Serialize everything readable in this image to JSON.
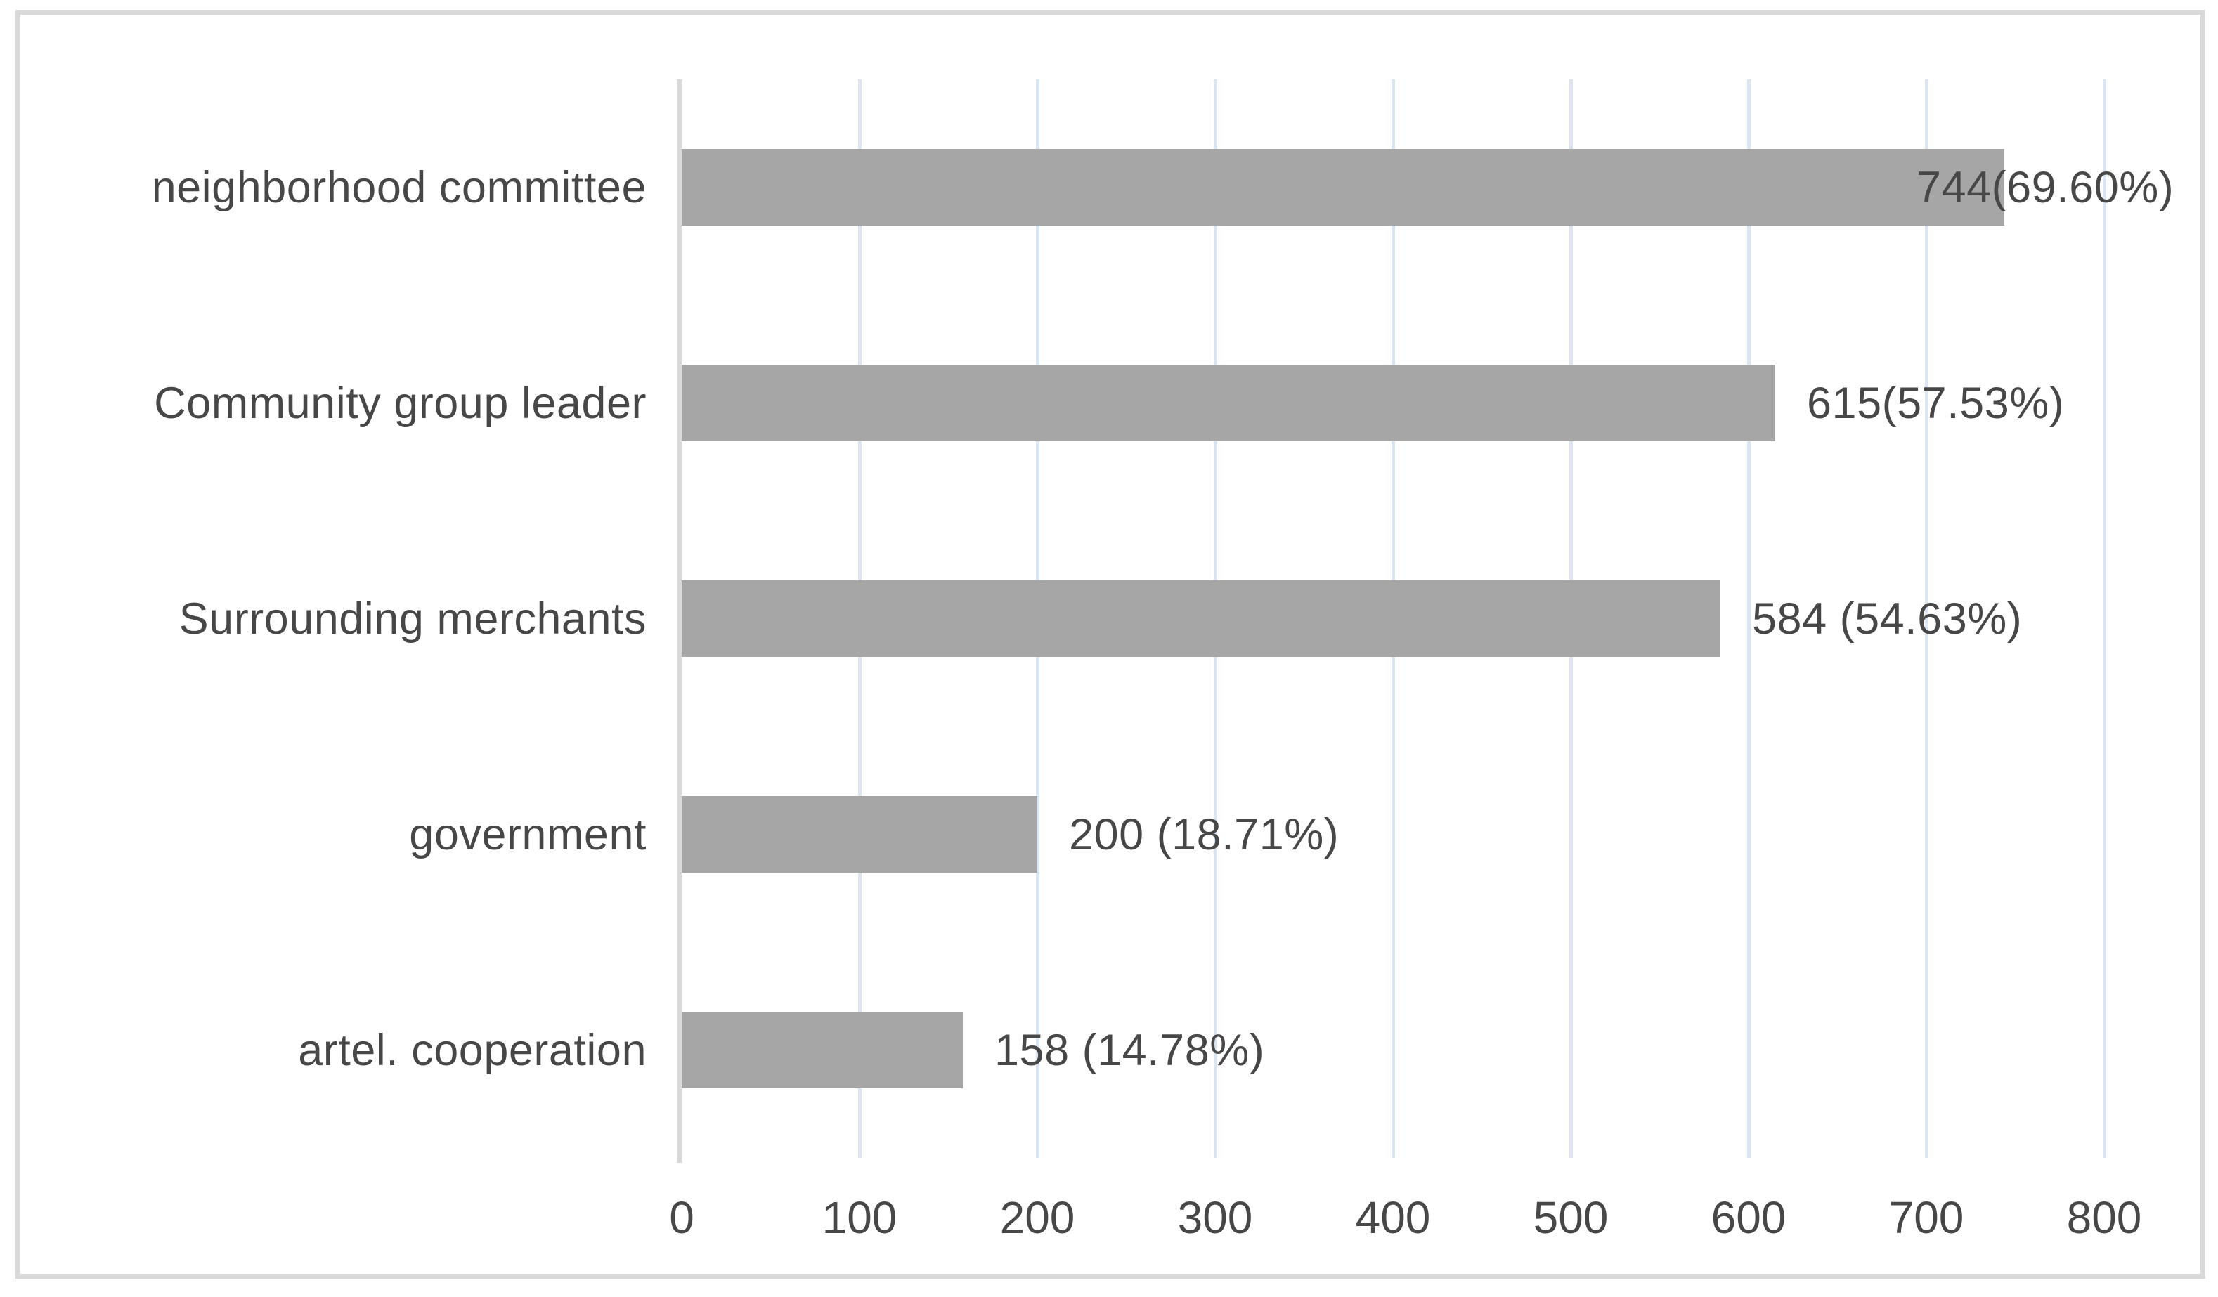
{
  "chart_data": {
    "type": "bar",
    "orientation": "horizontal",
    "title": "",
    "xlabel": "",
    "ylabel": "",
    "categories": [
      "neighborhood committee",
      "Community group leader",
      "Surrounding merchants",
      "government",
      "artel. cooperation"
    ],
    "values": [
      744,
      615,
      584,
      200,
      158
    ],
    "percentages": [
      69.6,
      57.53,
      54.63,
      18.71,
      14.78
    ],
    "value_labels": [
      "744(69.60%)",
      "615(57.53%)",
      "584 (54.63%)",
      "200 (18.71%)",
      "158 (14.78%)"
    ],
    "xlim": [
      0,
      800
    ],
    "x_ticks": [
      "0",
      "100",
      "200",
      "300",
      "400",
      "500",
      "600",
      "700",
      "800"
    ],
    "grid": true,
    "legend": "none",
    "colors": {
      "bar": "#a6a6a6",
      "gridline": "#dbe5f1",
      "axis_line": "#d9d9d9",
      "frame_border": "#d9d9d9",
      "text": "#474747",
      "background": "#ffffff"
    }
  }
}
